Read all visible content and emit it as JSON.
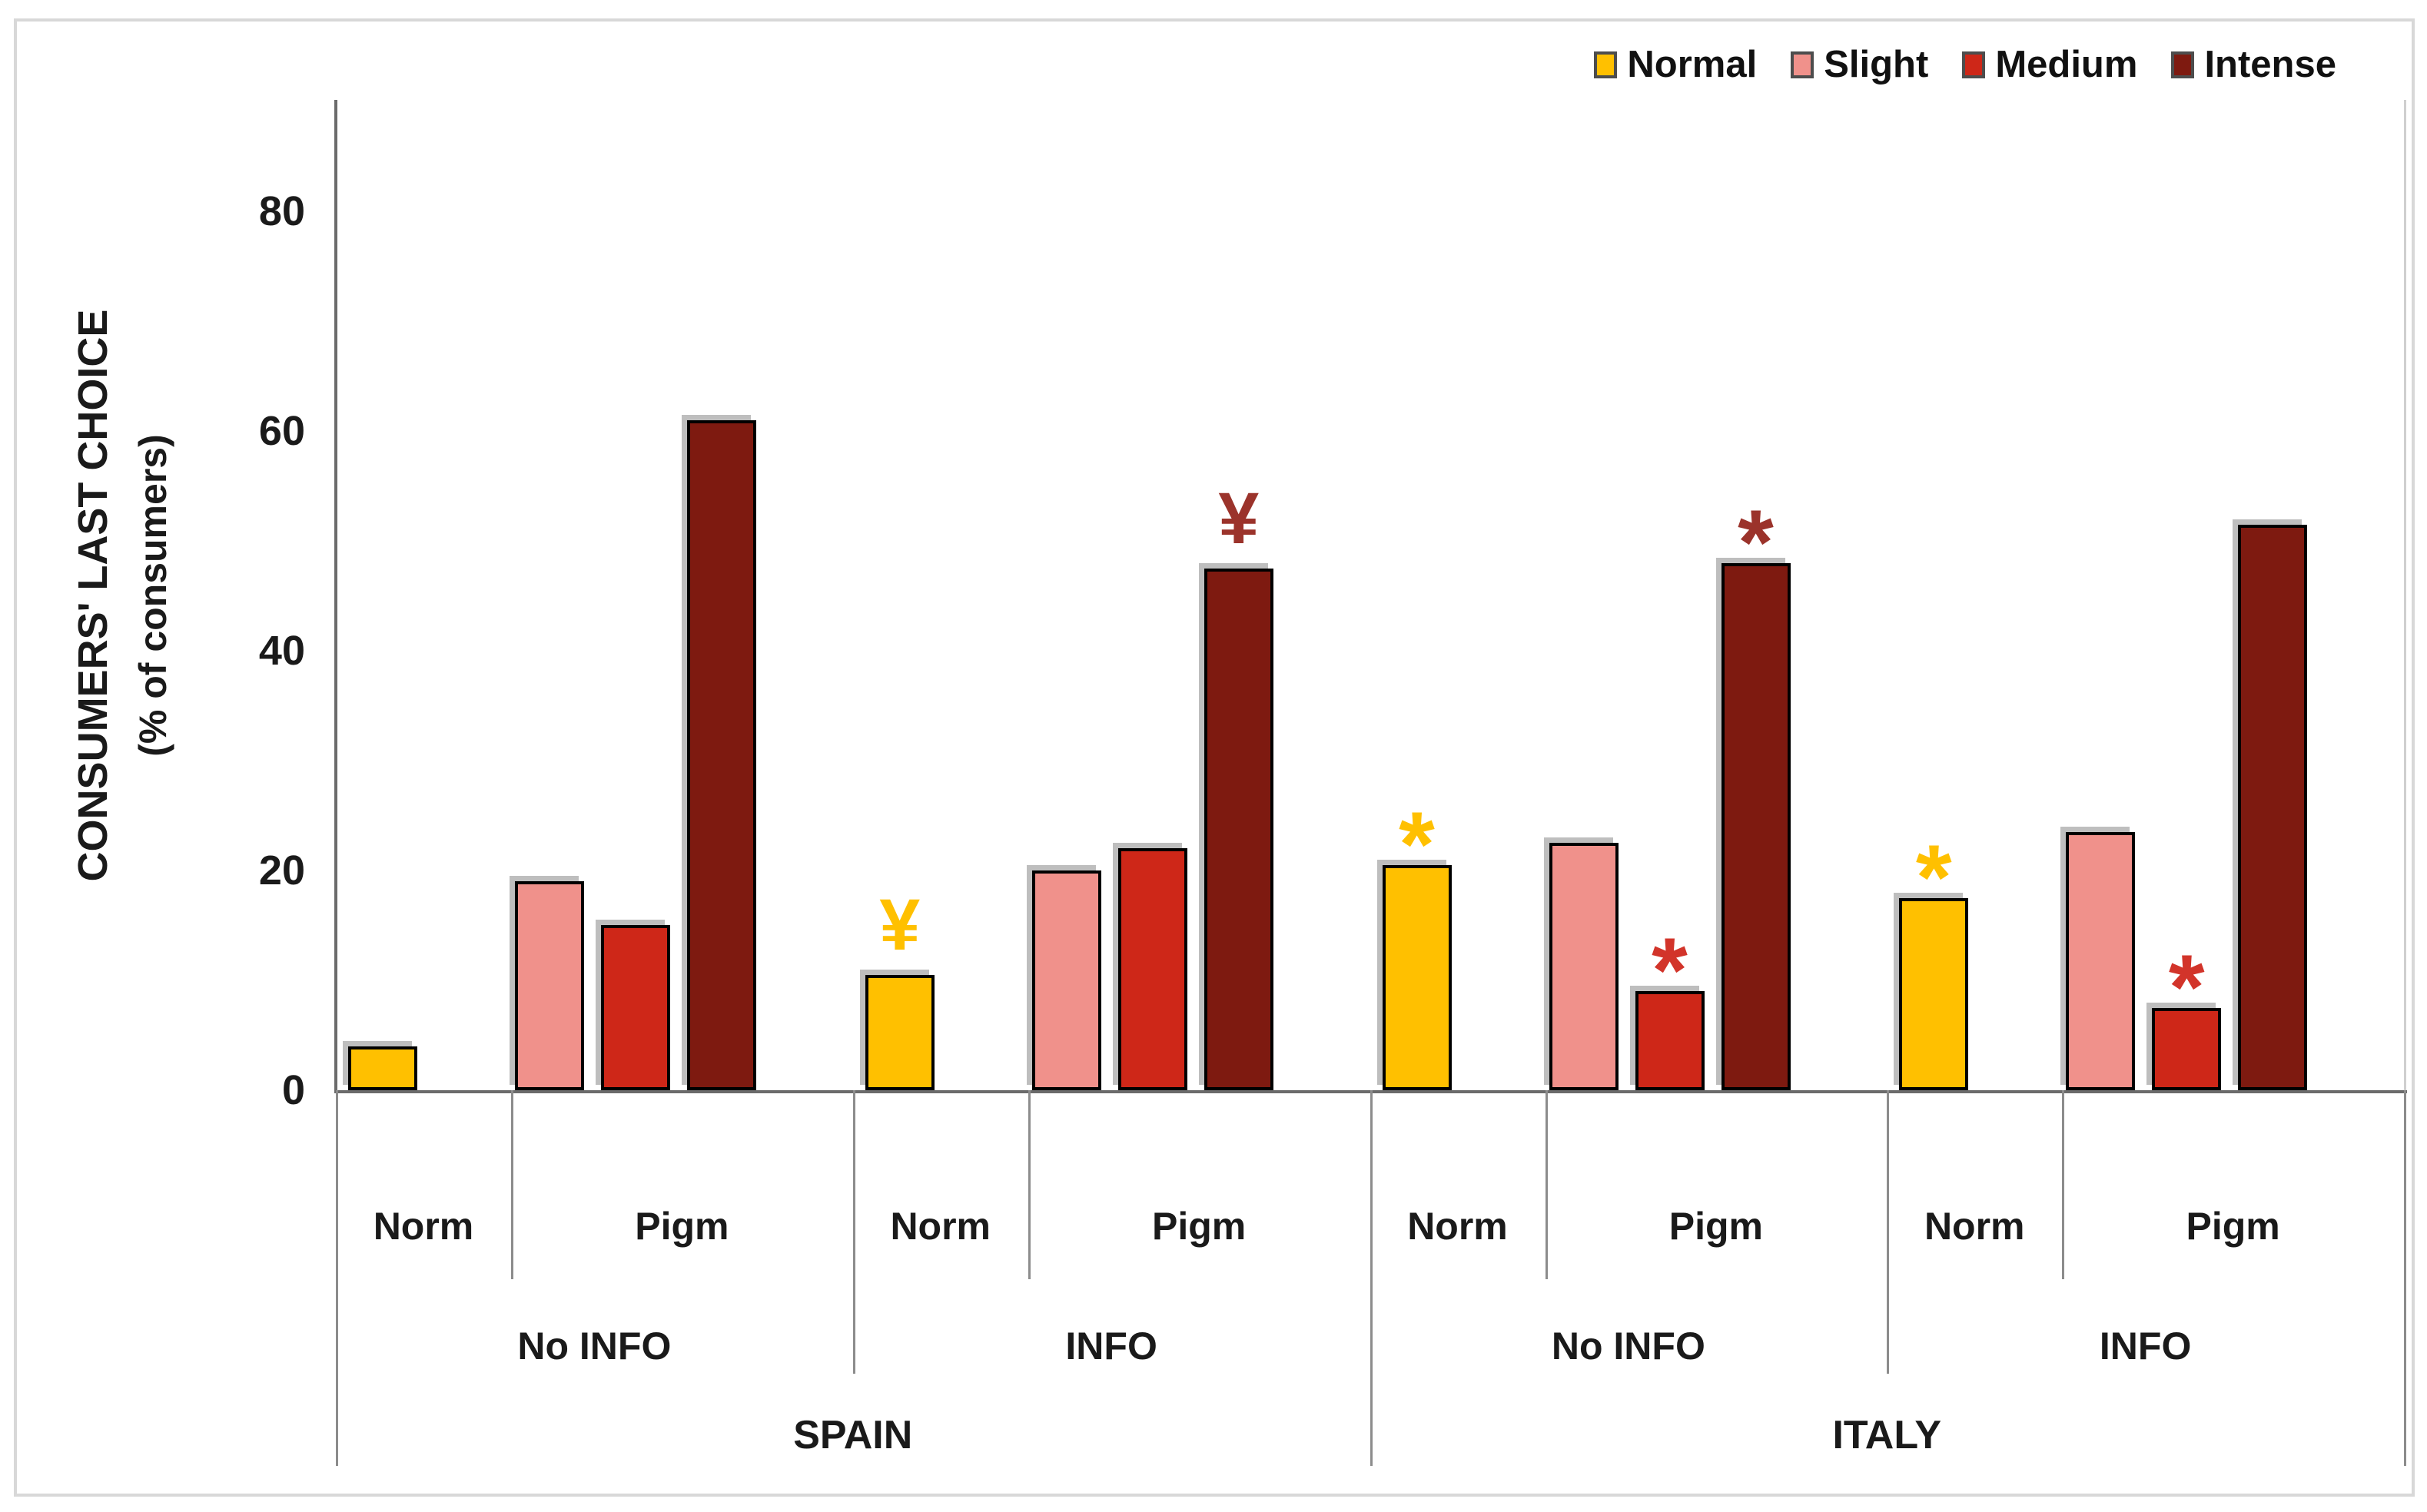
{
  "figure": {
    "y_axis_title_line1": "CONSUMERS' LAST CHOICE",
    "y_axis_title_line2": "(% of consumers)"
  },
  "chart_data": {
    "type": "bar",
    "title": "",
    "ylabel": "CONSUMERS' LAST CHOICE (% of consumers)",
    "xlabel": "",
    "ylim": [
      0,
      90
    ],
    "yticks": [
      0,
      20,
      40,
      60,
      80
    ],
    "grid": false,
    "legend_position": "top-right",
    "legend": [
      {
        "label": "Normal",
        "color": "#FFC000"
      },
      {
        "label": "Slight",
        "color": "#F0918B"
      },
      {
        "label": "Medium",
        "color": "#CE2718"
      },
      {
        "label": "Intense",
        "color": "#7E1A10"
      }
    ],
    "annotation_colors": {
      "gold": "#FFC000",
      "red": "#D2342A",
      "dark_red": "#9B332B"
    },
    "groups": [
      {
        "country": "SPAIN",
        "condition": "No INFO",
        "sections": [
          {
            "label": "Norm",
            "bars": [
              {
                "series": "Normal",
                "value": 4
              }
            ]
          },
          {
            "label": "Pigm",
            "bars": [
              {
                "series": "Slight",
                "value": 19
              },
              {
                "series": "Medium",
                "value": 15
              },
              {
                "series": "Intense",
                "value": 61
              }
            ]
          }
        ]
      },
      {
        "country": "SPAIN",
        "condition": "INFO",
        "sections": [
          {
            "label": "Norm",
            "bars": [
              {
                "series": "Normal",
                "value": 10.5,
                "annotation": "¥",
                "annotation_color": "#FFC000"
              }
            ]
          },
          {
            "label": "Pigm",
            "bars": [
              {
                "series": "Slight",
                "value": 20
              },
              {
                "series": "Medium",
                "value": 22
              },
              {
                "series": "Intense",
                "value": 47.5,
                "annotation": "¥",
                "annotation_color": "#9B332B"
              }
            ]
          }
        ]
      },
      {
        "country": "ITALY",
        "condition": "No INFO",
        "sections": [
          {
            "label": "Norm",
            "bars": [
              {
                "series": "Normal",
                "value": 20.5,
                "annotation": "*",
                "annotation_color": "#FFC000"
              }
            ]
          },
          {
            "label": "Pigm",
            "bars": [
              {
                "series": "Slight",
                "value": 22.5
              },
              {
                "series": "Medium",
                "value": 9,
                "annotation": "*",
                "annotation_color": "#D2342A"
              },
              {
                "series": "Intense",
                "value": 48,
                "annotation": "*",
                "annotation_color": "#9B332B"
              }
            ]
          }
        ]
      },
      {
        "country": "ITALY",
        "condition": "INFO",
        "sections": [
          {
            "label": "Norm",
            "bars": [
              {
                "series": "Normal",
                "value": 17.5,
                "annotation": "*",
                "annotation_color": "#FFC000"
              }
            ]
          },
          {
            "label": "Pigm",
            "bars": [
              {
                "series": "Slight",
                "value": 23.5
              },
              {
                "series": "Medium",
                "value": 7.5,
                "annotation": "*",
                "annotation_color": "#D2342A"
              },
              {
                "series": "Intense",
                "value": 51.5
              }
            ]
          }
        ]
      }
    ]
  }
}
